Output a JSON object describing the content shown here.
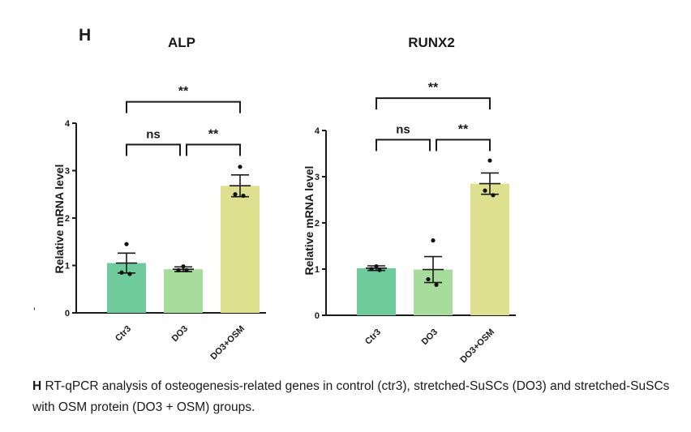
{
  "panel_letter": "H",
  "caption": {
    "letter": "H",
    "text": " RT-qPCR analysis of osteogenesis-related genes in control (ctr3), stretched-SuSCs (DO3) and stretched-SuSCs with OSM protein (DO3 + OSM) groups."
  },
  "stray_mark": "'",
  "colors": {
    "Ctr3": "#6fcb9b",
    "DO3": "#a8dc9c",
    "DO3+OSM": "#dfe08f",
    "axis": "#1a1a1a",
    "points": "#111111"
  },
  "chart_data": [
    {
      "type": "bar",
      "title": "ALP",
      "ylabel": "Relative mRNA level",
      "xlabel": "",
      "ylim": [
        0,
        4
      ],
      "yticks": [
        "0",
        "1",
        "2",
        "3",
        "4"
      ],
      "categories": [
        "Ctr3",
        "DO3",
        "DO3+OSM"
      ],
      "values": [
        1.05,
        0.92,
        2.68
      ],
      "errors": [
        0.21,
        0.05,
        0.23
      ],
      "points": [
        [
          1.45,
          0.85,
          0.82
        ],
        [
          0.98,
          0.9,
          0.9
        ],
        [
          3.08,
          2.5,
          2.47
        ]
      ],
      "significance": [
        {
          "from": 0,
          "to": 1,
          "label": "ns",
          "level": 3.55
        },
        {
          "from": 1,
          "to": 2,
          "label": "**",
          "level": 3.55
        },
        {
          "from": 0,
          "to": 2,
          "label": "**",
          "level": 4.45
        }
      ],
      "grid": false,
      "legend": "none"
    },
    {
      "type": "bar",
      "title": "RUNX2",
      "ylabel": "Relative mRNA level",
      "xlabel": "",
      "ylim": [
        0,
        4
      ],
      "yticks": [
        "0",
        "1",
        "2",
        "3",
        "4"
      ],
      "categories": [
        "Ctr3",
        "DO3",
        "DO3+OSM"
      ],
      "values": [
        1.02,
        0.99,
        2.85
      ],
      "errors": [
        0.05,
        0.28,
        0.23
      ],
      "points": [
        [
          1.06,
          1.0,
          0.98
        ],
        [
          1.62,
          0.78,
          0.66
        ],
        [
          3.35,
          2.7,
          2.6
        ]
      ],
      "significance": [
        {
          "from": 0,
          "to": 1,
          "label": "ns",
          "level": 3.8
        },
        {
          "from": 1,
          "to": 2,
          "label": "**",
          "level": 3.8
        },
        {
          "from": 0,
          "to": 2,
          "label": "**",
          "level": 4.7
        }
      ],
      "grid": false,
      "legend": "none"
    }
  ]
}
